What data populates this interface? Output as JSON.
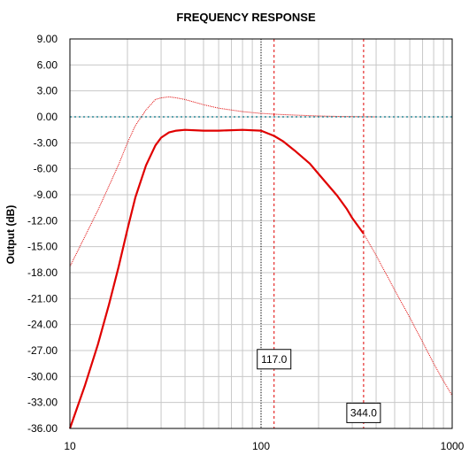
{
  "chart_data": {
    "type": "line",
    "title": "FREQUENCY RESPONSE",
    "xlabel": "",
    "ylabel": "Output (dB)",
    "xscale": "log",
    "xlim": [
      10,
      1000
    ],
    "ylim": [
      -36,
      9
    ],
    "yticks": [
      "9.00",
      "6.00",
      "3.00",
      "0.00",
      "-3.00",
      "-6.00",
      "-9.00",
      "-12.00",
      "-15.00",
      "-18.00",
      "-21.00",
      "-24.00",
      "-27.00",
      "-30.00",
      "-33.00",
      "-36.00"
    ],
    "xticks": [
      "10",
      "100",
      "1000"
    ],
    "grid": true,
    "colors": {
      "solid": "#e00000",
      "thin": "#e00000",
      "reference": "#2e8b99",
      "marker": "#e00000",
      "center": "#000000"
    },
    "markers": [
      {
        "x": 117.0,
        "label": "117.0",
        "label_y": -28.0
      },
      {
        "x": 344.0,
        "label": "344.0",
        "label_y": -34.2
      }
    ],
    "center_line_x": 100,
    "series": [
      {
        "style": "thin",
        "x": [
          10,
          12,
          14,
          16,
          18,
          20,
          22,
          25,
          28,
          30,
          33,
          36,
          40,
          50,
          60,
          80,
          100,
          120,
          150,
          200,
          250,
          300,
          400
        ],
        "y": [
          -17.3,
          -13.8,
          -10.8,
          -8.0,
          -5.5,
          -3.0,
          -1.0,
          0.8,
          2.0,
          2.2,
          2.3,
          2.2,
          2.0,
          1.4,
          1.0,
          0.6,
          0.4,
          0.3,
          0.2,
          0.1,
          0.05,
          0.03,
          0.0
        ]
      },
      {
        "style": "solid",
        "x": [
          10,
          12,
          14,
          16,
          18,
          20,
          22,
          25,
          28,
          30,
          33,
          36,
          40,
          50,
          60,
          80,
          100,
          117,
          130,
          150,
          180,
          200,
          250,
          280,
          300,
          344
        ],
        "y": [
          -36.0,
          -31.0,
          -26.3,
          -21.7,
          -17.3,
          -13.0,
          -9.3,
          -5.6,
          -3.3,
          -2.4,
          -1.8,
          -1.6,
          -1.5,
          -1.6,
          -1.6,
          -1.5,
          -1.6,
          -2.2,
          -2.8,
          -3.9,
          -5.4,
          -6.6,
          -9.1,
          -10.6,
          -11.7,
          -13.5
        ]
      },
      {
        "style": "thin",
        "x": [
          344,
          400,
          500,
          600,
          700,
          800,
          900,
          1000
        ],
        "y": [
          -13.5,
          -16.0,
          -20.0,
          -23.2,
          -26.0,
          -28.5,
          -30.5,
          -32.2
        ]
      },
      {
        "style": "reference",
        "x": [
          10,
          1000
        ],
        "y": [
          0,
          0
        ]
      }
    ]
  }
}
